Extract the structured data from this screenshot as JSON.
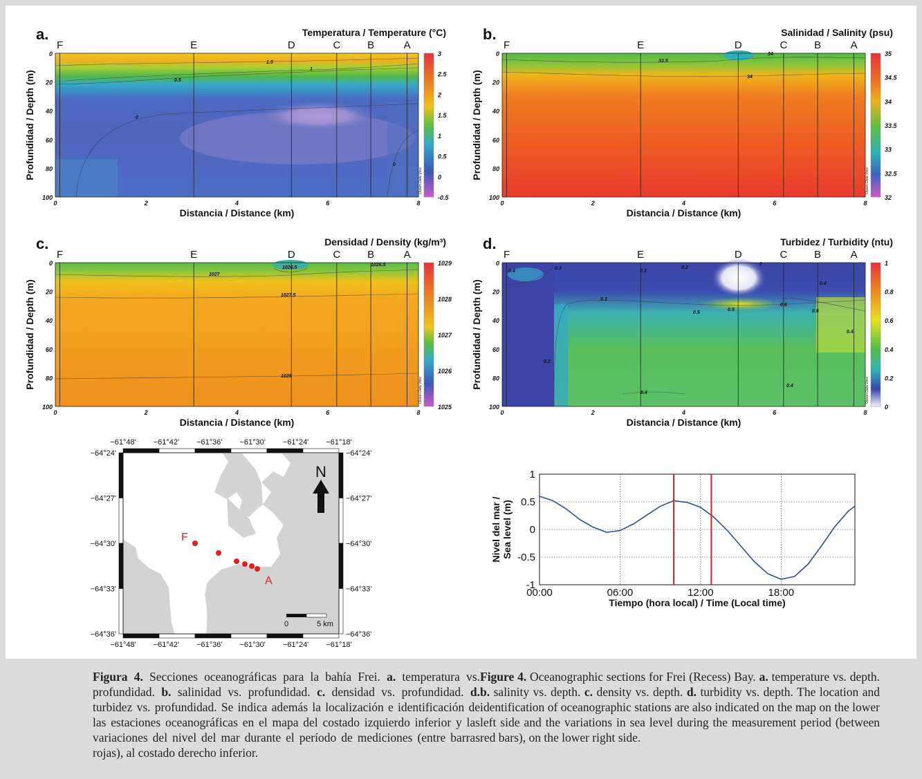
{
  "panels": [
    {
      "letter": "a.",
      "title": "Temperatura / Temperature (°C)",
      "xlabel": "Distancia / Distance (km)",
      "ylabel": "Profundidad / Depth (m)",
      "x_ticks": [
        "0",
        "2",
        "4",
        "6",
        "8"
      ],
      "y_ticks": [
        "0",
        "20",
        "40",
        "60",
        "80",
        "100"
      ],
      "cbar_ticks": [
        "3",
        "2.5",
        "2",
        "1.5",
        "1",
        "0.5",
        "0",
        "-0.5"
      ],
      "contour_labels": [
        "1.5",
        "1",
        "0.5",
        "0",
        "0"
      ],
      "watermark": "Ocean Data View"
    },
    {
      "letter": "b.",
      "title": "Salinidad / Salinity (psu)",
      "xlabel": "Distancia / Distance (km)",
      "ylabel": "Profundidad / Depth (m)",
      "x_ticks": [
        "0",
        "2",
        "4",
        "6",
        "8"
      ],
      "y_ticks": [
        "0",
        "20",
        "40",
        "60",
        "80",
        "100"
      ],
      "cbar_ticks": [
        "35",
        "34.5",
        "34",
        "33.5",
        "33",
        "32.5",
        "32"
      ],
      "contour_labels": [
        "33.5",
        "34",
        "34"
      ],
      "watermark": "Ocean Data View"
    },
    {
      "letter": "c.",
      "title": "Densidad / Density (kg/m³)",
      "xlabel": "Distancia / Distance (km)",
      "ylabel": "Profundidad / Depth (m)",
      "x_ticks": [
        "0",
        "2",
        "4",
        "6",
        "8"
      ],
      "y_ticks": [
        "0",
        "20",
        "40",
        "60",
        "80",
        "100"
      ],
      "cbar_ticks": [
        "1029",
        "1028",
        "1027",
        "1026",
        "1025"
      ],
      "contour_labels": [
        "1026.5",
        "1026.5",
        "1027",
        "1027.5",
        "1028"
      ],
      "watermark": "Ocean Data View"
    },
    {
      "letter": "d.",
      "title": "Turbidez / Turbidity (ntu)",
      "xlabel": "Distancia / Distance (km)",
      "ylabel": "Profundidad / Depth (m)",
      "x_ticks": [
        "0",
        "2",
        "4",
        "6",
        "8"
      ],
      "y_ticks": [
        "0",
        "20",
        "40",
        "60",
        "80",
        "100"
      ],
      "cbar_ticks": [
        "1",
        "0.8",
        "0.6",
        "0.4",
        "0.2",
        "0"
      ],
      "contour_labels": [
        "0.4",
        "0.3",
        "0.3",
        "0.2",
        "0",
        "0.3",
        "0.4",
        "0.5",
        "0.5",
        "0.6",
        "0.4",
        "0.6",
        "0.2",
        "0.4",
        "0.4"
      ],
      "watermark": "Ocean Data View"
    }
  ],
  "stations": [
    {
      "label": "F",
      "km": 0.1
    },
    {
      "label": "E",
      "km": 3.05
    },
    {
      "label": "D",
      "km": 5.2
    },
    {
      "label": "C",
      "km": 6.2
    },
    {
      "label": "B",
      "km": 6.95
    },
    {
      "label": "A",
      "km": 7.75
    }
  ],
  "map": {
    "lon_ticks": [
      "−61°48'",
      "−61°42'",
      "−61°36'",
      "−61°30'",
      "−61°24'",
      "−61°18'"
    ],
    "lat_ticks": [
      "−64°24'",
      "−64°27'",
      "−64°30'",
      "−64°33'",
      "−64°36'"
    ],
    "north_label": "N",
    "station_F_label": "F",
    "station_A_label": "A",
    "scale_labels": [
      "0",
      "5 km"
    ],
    "land_color": "#d3d3d3",
    "station_color": "#e02020"
  },
  "chart_data": {
    "type": "line",
    "xlabel": "Tiempo (hora local) / Time (Local time)",
    "ylabel": "Nivel del mar / Sea level (m)",
    "ylabel_lines": [
      "Nivel del mar /",
      "Sea level (m)"
    ],
    "x_tick_labels": [
      "00:00",
      "06:00",
      "12:00",
      "18:00"
    ],
    "y_tick_labels": [
      "1",
      "0.5",
      "0",
      "-0.5",
      "-1"
    ],
    "xlim": [
      0,
      23.5
    ],
    "ylim": [
      -1,
      1
    ],
    "grid": true,
    "series": [
      {
        "x": [
          0,
          1,
          2,
          3,
          4,
          5,
          6,
          7,
          8,
          9,
          10,
          11,
          12,
          13,
          14,
          15,
          16,
          17,
          18,
          19,
          20,
          21,
          22,
          23,
          23.5
        ],
        "y": [
          0.6,
          0.52,
          0.37,
          0.18,
          0.04,
          -0.05,
          -0.02,
          0.1,
          0.26,
          0.42,
          0.52,
          0.49,
          0.4,
          0.22,
          -0.02,
          -0.3,
          -0.58,
          -0.8,
          -0.9,
          -0.85,
          -0.63,
          -0.3,
          0.05,
          0.33,
          0.42
        ],
        "color": "#2c4fa0"
      }
    ],
    "red_bars_x": [
      10.0,
      12.8
    ],
    "red_bar_color": "#e02020"
  },
  "captions": {
    "es": {
      "fig": "Figura 4.",
      "lead": " Secciones oceanográficas para la bahía Frei. ",
      "a": "a.",
      "a_txt": " temperatura vs. profundidad. ",
      "b": "b.",
      "b_txt": " salinidad vs. profundidad. ",
      "c": "c.",
      "c_txt": " densidad vs. profundidad. ",
      "d": "d.",
      "d_txt": " turbidez vs. profundidad. Se indica además la localización e identificación de las estaciones oceanográficas en el mapa del costado izquierdo inferior y las variaciones del nivel del mar durante el período de mediciones (entre barras rojas), al costado derecho inferior."
    },
    "en": {
      "fig": "Figure 4.",
      "lead": " Oceanographic sections for Frei (Recess) Bay. ",
      "a": "a.",
      "a_txt": " temperature vs. depth. ",
      "b": "b.",
      "b_txt": " salinity vs. depth. ",
      "c": "c.",
      "c_txt": " density vs. depth. ",
      "d": "d.",
      "d_txt": " turbidity vs. depth. The location and identification of oceanographic stations are also indicated on the map on the lower left side and the variations in sea level during the measurement period (between red bars), on the lower right side."
    }
  }
}
